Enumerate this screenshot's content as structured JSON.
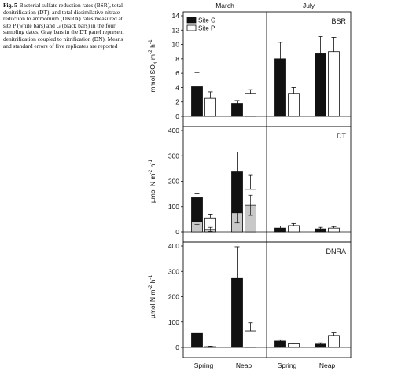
{
  "caption": {
    "label": "Fig. 5",
    "text": "Bacterial sulfate reduction rates (BSR), total denitrification (DT), and total dissimilative nitrate reduction to ammonium (DNRA) rates measured at site P (white bars) and G (black bars) in the four sampling dates. Gray bars in the DT panel represent denitrification coupled to nitrification (DN). Means and standard errors of five replicates are reported"
  },
  "chart_data": {
    "type": "bar",
    "columns": [
      "March",
      "July"
    ],
    "categories": [
      "Spring",
      "Neap"
    ],
    "legend": {
      "placement": "top-left",
      "entries": [
        {
          "name": "Site G",
          "color": "#111111"
        },
        {
          "name": "Site P",
          "color": "#ffffff"
        }
      ]
    },
    "panels": [
      {
        "title": "BSR",
        "ylabel_main": "mmol SO",
        "ylabel_sub": "4",
        "ylabel_unit": " m",
        "ylabel_exp": "-2",
        "ylabel_tail": " h",
        "ylabel_tail_exp": "-1",
        "ylim": [
          0,
          14
        ],
        "ticks": [
          0,
          2,
          4,
          6,
          8,
          10,
          12,
          14
        ],
        "data": {
          "March": {
            "Site G": [
              4.1,
              1.8
            ],
            "Site G_err": [
              2.0,
              0.4
            ],
            "Site P": [
              2.5,
              3.2
            ],
            "Site P_err": [
              0.9,
              0.5
            ]
          },
          "July": {
            "Site G": [
              8.0,
              8.7
            ],
            "Site G_err": [
              2.3,
              2.4
            ],
            "Site P": [
              3.2,
              9.0
            ],
            "Site P_err": [
              0.8,
              2.0
            ]
          }
        }
      },
      {
        "title": "DT",
        "ylabel_main": "µmol N m",
        "ylabel_exp": "-2",
        "ylabel_tail": " h",
        "ylabel_tail_exp": "-1",
        "ylim": [
          0,
          400
        ],
        "ticks": [
          0,
          100,
          200,
          300,
          400
        ],
        "data": {
          "March": {
            "Site G": [
              135,
              237
            ],
            "Site G_err": [
              15,
              78
            ],
            "Site P": [
              55,
              168
            ],
            "Site P_err": [
              15,
              55
            ],
            "DN_G": [
              40,
              75
            ],
            "DN_G_err": [
              10,
              40
            ],
            "DN_P": [
              10,
              105
            ],
            "DN_P_err": [
              8,
              40
            ]
          },
          "July": {
            "Site G": [
              15,
              12
            ],
            "Site G_err": [
              8,
              6
            ],
            "Site P": [
              25,
              15
            ],
            "Site P_err": [
              8,
              6
            ]
          }
        }
      },
      {
        "title": "DNRA",
        "ylabel_main": "µmol N m",
        "ylabel_exp": "-2",
        "ylabel_tail": " h",
        "ylabel_tail_exp": "-1",
        "ylim": [
          0,
          400
        ],
        "ticks": [
          0,
          100,
          200,
          300,
          400
        ],
        "data": {
          "March": {
            "Site G": [
              55,
              272
            ],
            "Site G_err": [
              18,
              125
            ],
            "Site P": [
              3,
              65
            ],
            "Site P_err": [
              2,
              32
            ]
          },
          "July": {
            "Site G": [
              25,
              13
            ],
            "Site G_err": [
              5,
              5
            ],
            "Site P": [
              14,
              47
            ],
            "Site P_err": [
              3,
              10
            ]
          }
        }
      }
    ],
    "colors": {
      "site_g": "#111111",
      "site_p": "#ffffff",
      "dn": "#c8c8c8"
    }
  }
}
